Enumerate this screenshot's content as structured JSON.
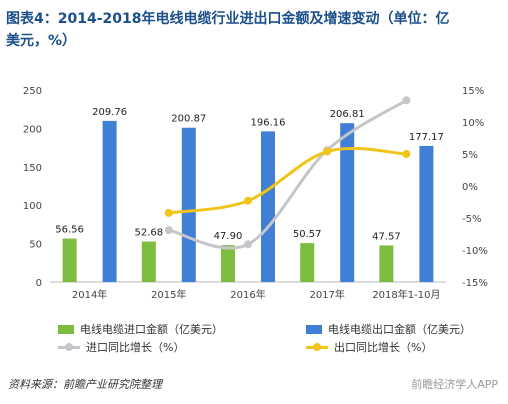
{
  "title": {
    "line1": "图表4：2014-2018年电线电缆行业进出口金额及增速变动（单位：亿",
    "line2": "美元，%）"
  },
  "chart_data": {
    "type": "bar",
    "categories": [
      "2014年",
      "2015年",
      "2016年",
      "2017年",
      "2018年1-10月"
    ],
    "series": [
      {
        "name": "电线电缆进口金额（亿美元）",
        "axis": "left",
        "kind": "bar",
        "color": "#7cbd3f",
        "values": [
          56.56,
          52.68,
          47.9,
          50.57,
          47.57
        ]
      },
      {
        "name": "电线电缆出口金额（亿美元）",
        "axis": "left",
        "kind": "bar",
        "color": "#3f7fd6",
        "values": [
          209.76,
          200.87,
          196.16,
          206.81,
          177.17
        ]
      },
      {
        "name": "进口同比增长（%）",
        "axis": "right",
        "kind": "line",
        "color": "#c4c6ca",
        "values": [
          null,
          -6.9,
          -9.1,
          5.6,
          13.4
        ]
      },
      {
        "name": "出口同比增长（%）",
        "axis": "right",
        "kind": "line",
        "color": "#f0c419",
        "values": [
          null,
          -4.2,
          -2.3,
          5.4,
          5.0
        ]
      }
    ],
    "ylim_left": [
      0,
      250
    ],
    "ylim_right": [
      -15,
      15
    ],
    "yticks_left": [
      0,
      50,
      100,
      150,
      200,
      250
    ],
    "yticks_right": [
      "-15%",
      "-10%",
      "-5%",
      "0%",
      "5%",
      "10%",
      "15%"
    ],
    "grid": false,
    "legend": "bottom"
  },
  "legend_items": [
    [
      "电线电缆进口金额（亿美元）",
      "电线电缆出口金额（亿美元）"
    ],
    [
      "进口同比增长（%）",
      "出口同比增长（%）"
    ]
  ],
  "source": "资料来源：前瞻产业研究院整理",
  "watermark": "前瞻经济学人APP"
}
